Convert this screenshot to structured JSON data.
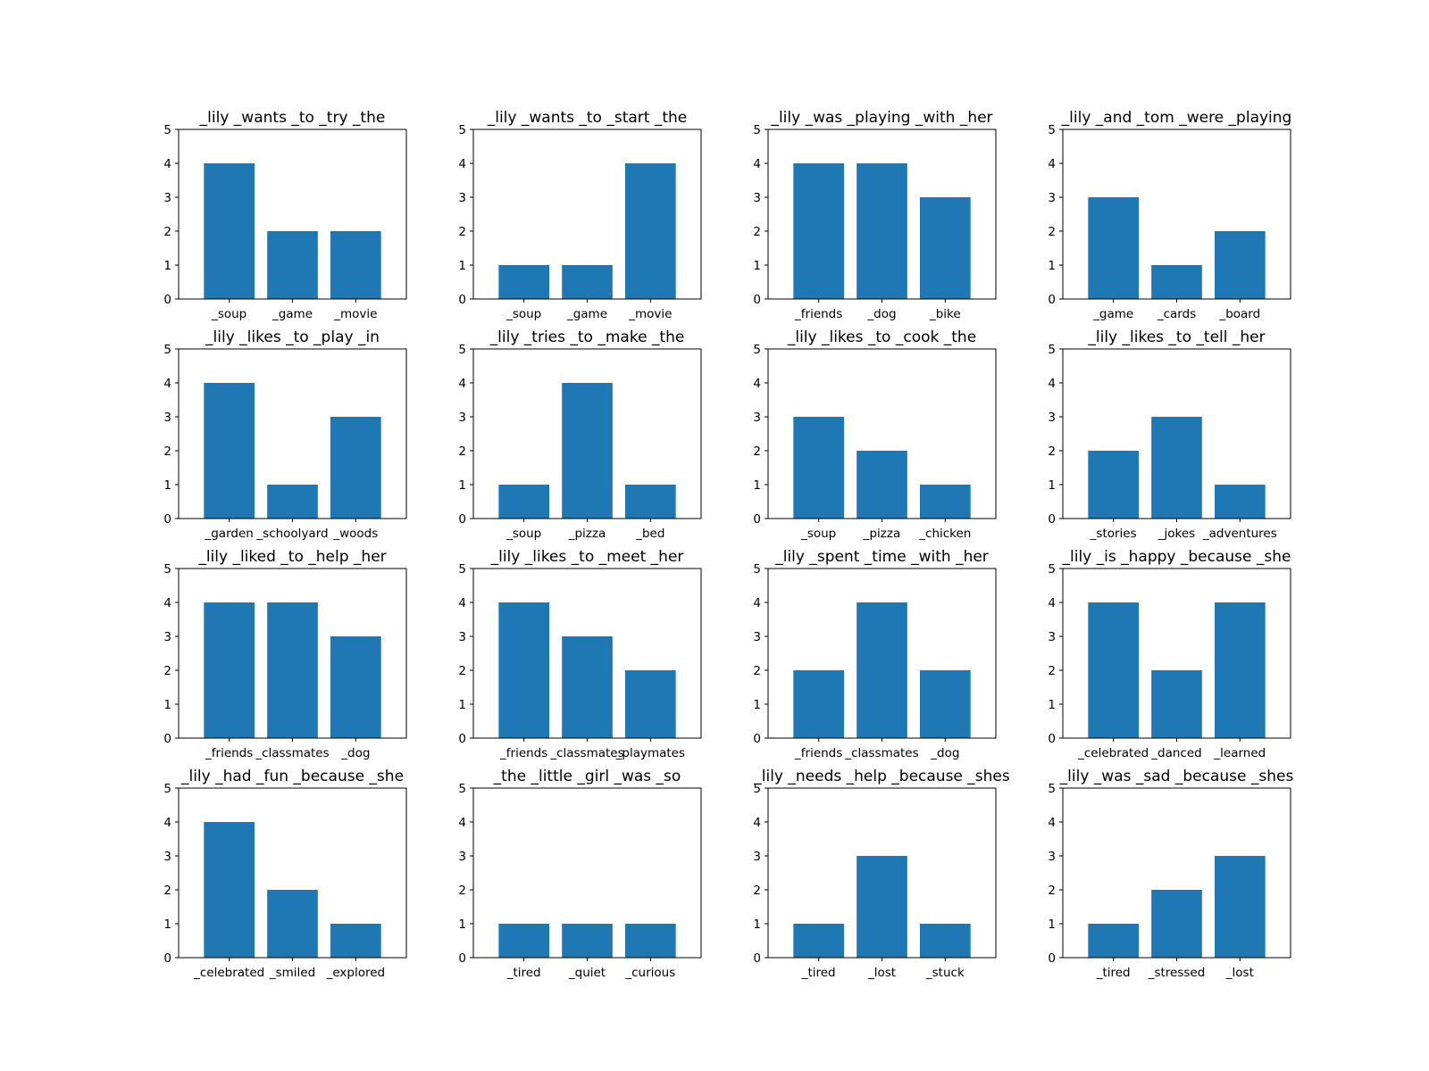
{
  "figure": {
    "bar_color": "#1f77b4",
    "axes_color": "#000000",
    "background": "#ffffff"
  },
  "chart_data": [
    {
      "type": "bar",
      "title": "_lily _wants _to _try _the",
      "categories": [
        "_soup",
        "_game",
        "_movie"
      ],
      "values": [
        4,
        2,
        2
      ],
      "ylim": [
        0,
        5
      ],
      "yticks": [
        0,
        1,
        2,
        3,
        4,
        5
      ],
      "grid": false
    },
    {
      "type": "bar",
      "title": "_lily _wants _to _start _the",
      "categories": [
        "_soup",
        "_game",
        "_movie"
      ],
      "values": [
        1,
        1,
        4
      ],
      "ylim": [
        0,
        5
      ],
      "yticks": [
        0,
        1,
        2,
        3,
        4,
        5
      ],
      "grid": false
    },
    {
      "type": "bar",
      "title": "_lily _was _playing _with _her",
      "categories": [
        "_friends",
        "_dog",
        "_bike"
      ],
      "values": [
        4,
        4,
        3
      ],
      "ylim": [
        0,
        5
      ],
      "yticks": [
        0,
        1,
        2,
        3,
        4,
        5
      ],
      "grid": false
    },
    {
      "type": "bar",
      "title": "_lily _and _tom _were _playing",
      "categories": [
        "_game",
        "_cards",
        "_board"
      ],
      "values": [
        3,
        1,
        2
      ],
      "ylim": [
        0,
        5
      ],
      "yticks": [
        0,
        1,
        2,
        3,
        4,
        5
      ],
      "grid": false
    },
    {
      "type": "bar",
      "title": "_lily _likes _to _play _in",
      "categories": [
        "_garden",
        "_schoolyard",
        "_woods"
      ],
      "values": [
        4,
        1,
        3
      ],
      "ylim": [
        0,
        5
      ],
      "yticks": [
        0,
        1,
        2,
        3,
        4,
        5
      ],
      "grid": false
    },
    {
      "type": "bar",
      "title": "_lily _tries _to _make _the",
      "categories": [
        "_soup",
        "_pizza",
        "_bed"
      ],
      "values": [
        1,
        4,
        1
      ],
      "ylim": [
        0,
        5
      ],
      "yticks": [
        0,
        1,
        2,
        3,
        4,
        5
      ],
      "grid": false
    },
    {
      "type": "bar",
      "title": "_lily _likes _to _cook _the",
      "categories": [
        "_soup",
        "_pizza",
        "_chicken"
      ],
      "values": [
        3,
        2,
        1
      ],
      "ylim": [
        0,
        5
      ],
      "yticks": [
        0,
        1,
        2,
        3,
        4,
        5
      ],
      "grid": false
    },
    {
      "type": "bar",
      "title": "_lily _likes _to _tell _her",
      "categories": [
        "_stories",
        "_jokes",
        "_adventures"
      ],
      "values": [
        2,
        3,
        1
      ],
      "ylim": [
        0,
        5
      ],
      "yticks": [
        0,
        1,
        2,
        3,
        4,
        5
      ],
      "grid": false
    },
    {
      "type": "bar",
      "title": "_lily _liked _to _help _her",
      "categories": [
        "_friends",
        "_classmates",
        "_dog"
      ],
      "values": [
        4,
        4,
        3
      ],
      "ylim": [
        0,
        5
      ],
      "yticks": [
        0,
        1,
        2,
        3,
        4,
        5
      ],
      "grid": false
    },
    {
      "type": "bar",
      "title": "_lily _likes _to _meet _her",
      "categories": [
        "_friends",
        "_classmates",
        "_playmates"
      ],
      "values": [
        4,
        3,
        2
      ],
      "ylim": [
        0,
        5
      ],
      "yticks": [
        0,
        1,
        2,
        3,
        4,
        5
      ],
      "grid": false
    },
    {
      "type": "bar",
      "title": "_lily _spent _time _with _her",
      "categories": [
        "_friends",
        "_classmates",
        "_dog"
      ],
      "values": [
        2,
        4,
        2
      ],
      "ylim": [
        0,
        5
      ],
      "yticks": [
        0,
        1,
        2,
        3,
        4,
        5
      ],
      "grid": false
    },
    {
      "type": "bar",
      "title": "_lily _is _happy _because _she",
      "categories": [
        "_celebrated",
        "_danced",
        "_learned"
      ],
      "values": [
        4,
        2,
        4
      ],
      "ylim": [
        0,
        5
      ],
      "yticks": [
        0,
        1,
        2,
        3,
        4,
        5
      ],
      "grid": false
    },
    {
      "type": "bar",
      "title": "_lily _had _fun _because _she",
      "categories": [
        "_celebrated",
        "_smiled",
        "_explored"
      ],
      "values": [
        4,
        2,
        1
      ],
      "ylim": [
        0,
        5
      ],
      "yticks": [
        0,
        1,
        2,
        3,
        4,
        5
      ],
      "grid": false
    },
    {
      "type": "bar",
      "title": "_the _little _girl _was _so",
      "categories": [
        "_tired",
        "_quiet",
        "_curious"
      ],
      "values": [
        1,
        1,
        1
      ],
      "ylim": [
        0,
        5
      ],
      "yticks": [
        0,
        1,
        2,
        3,
        4,
        5
      ],
      "grid": false
    },
    {
      "type": "bar",
      "title": "_lily _needs _help _because _shes",
      "categories": [
        "_tired",
        "_lost",
        "_stuck"
      ],
      "values": [
        1,
        3,
        1
      ],
      "ylim": [
        0,
        5
      ],
      "yticks": [
        0,
        1,
        2,
        3,
        4,
        5
      ],
      "grid": false
    },
    {
      "type": "bar",
      "title": "_lily _was _sad _because _shes",
      "categories": [
        "_tired",
        "_stressed",
        "_lost"
      ],
      "values": [
        1,
        2,
        3
      ],
      "ylim": [
        0,
        5
      ],
      "yticks": [
        0,
        1,
        2,
        3,
        4,
        5
      ],
      "grid": false
    }
  ]
}
